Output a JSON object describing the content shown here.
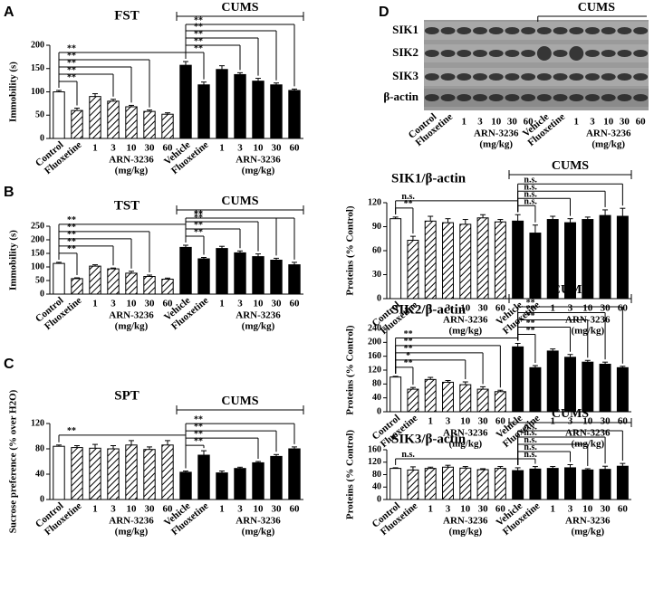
{
  "chart_data": [
    {
      "type": "bar",
      "panel_label": "A",
      "title": "FST",
      "ylabel": "Immobility (s)",
      "categories": [
        "Control",
        "Fluoxetine",
        "1",
        "3",
        "10",
        "30",
        "60",
        "Vehicle",
        "Fluoxetine",
        "1",
        "3",
        "10",
        "30",
        "60"
      ],
      "values": [
        100,
        60,
        90,
        80,
        68,
        58,
        52,
        157,
        115,
        148,
        137,
        123,
        115,
        103
      ],
      "errors": [
        3,
        5,
        6,
        4,
        3,
        3,
        3,
        8,
        6,
        8,
        4,
        6,
        4,
        3
      ],
      "bar_fills": [
        "white",
        "hatch",
        "hatch",
        "hatch",
        "hatch",
        "hatch",
        "hatch",
        "black",
        "black",
        "black",
        "black",
        "black",
        "black",
        "black"
      ],
      "ylim": [
        0,
        200
      ],
      "yticks": [
        0,
        50,
        100,
        150,
        200
      ],
      "group_label": [
        "ARN-3236",
        "(mg/kg)"
      ],
      "cums": "CUMS",
      "annotations": [
        {
          "text": "**",
          "from": 0,
          "to": 1
        },
        {
          "text": "**",
          "from": 0,
          "to": 3
        },
        {
          "text": "**",
          "from": 0,
          "to": 4
        },
        {
          "text": "**",
          "from": 0,
          "to": 5
        },
        {
          "text": "**",
          "from": 0,
          "to": 7
        },
        {
          "text": "**",
          "from": 7,
          "to": 8
        },
        {
          "text": "**",
          "from": 7,
          "to": 10
        },
        {
          "text": "**",
          "from": 7,
          "to": 11
        },
        {
          "text": "**",
          "from": 7,
          "to": 12
        },
        {
          "text": "**",
          "from": 7,
          "to": 13
        }
      ]
    },
    {
      "type": "bar",
      "panel_label": "B",
      "title": "TST",
      "ylabel": "Immobility (s)",
      "categories": [
        "Control",
        "Fluoxetine",
        "1",
        "3",
        "10",
        "30",
        "60",
        "Vehicle",
        "Fluoxetine",
        "1",
        "3",
        "10",
        "30",
        "60"
      ],
      "values": [
        113,
        57,
        103,
        93,
        77,
        65,
        55,
        172,
        130,
        168,
        152,
        138,
        125,
        108
      ],
      "errors": [
        4,
        3,
        5,
        3,
        7,
        5,
        4,
        8,
        5,
        8,
        7,
        10,
        7,
        9
      ],
      "bar_fills": [
        "white",
        "hatch",
        "hatch",
        "hatch",
        "hatch",
        "hatch",
        "hatch",
        "black",
        "black",
        "black",
        "black",
        "black",
        "black",
        "black"
      ],
      "ylim": [
        0,
        250
      ],
      "yticks": [
        0,
        50,
        100,
        150,
        200,
        250
      ],
      "group_label": [
        "ARN-3236",
        "(mg/kg)"
      ],
      "cums": "CUMS",
      "annotations": [
        {
          "text": "**",
          "from": 0,
          "to": 1
        },
        {
          "text": "**",
          "from": 0,
          "to": 3
        },
        {
          "text": "**",
          "from": 0,
          "to": 4
        },
        {
          "text": "**",
          "from": 0,
          "to": 5
        },
        {
          "text": "**",
          "from": 0,
          "to": 7
        },
        {
          "text": "**",
          "from": 7,
          "to": 8
        },
        {
          "text": "**",
          "from": 7,
          "to": 10
        },
        {
          "text": "**",
          "from": 7,
          "to": 11
        },
        {
          "text": "**",
          "from": 7,
          "to": 12
        },
        {
          "text": "**",
          "from": 7,
          "to": 13
        }
      ]
    },
    {
      "type": "bar",
      "panel_label": "C",
      "title": "SPT",
      "ylabel": "Sucrose preference (% over H2O)",
      "categories": [
        "Control",
        "Fluoxetine",
        "1",
        "3",
        "10",
        "30",
        "60",
        "Vehicle",
        "Fluoxetine",
        "1",
        "3",
        "10",
        "30",
        "60"
      ],
      "values": [
        84,
        82,
        81,
        80,
        86,
        79,
        86,
        43,
        70,
        42,
        49,
        58,
        68,
        80
      ],
      "errors": [
        2,
        3,
        6,
        5,
        7,
        4,
        7,
        2,
        7,
        3,
        2,
        2,
        3,
        3
      ],
      "bar_fills": [
        "white",
        "hatch",
        "hatch",
        "hatch",
        "hatch",
        "hatch",
        "hatch",
        "black",
        "black",
        "black",
        "black",
        "black",
        "black",
        "black"
      ],
      "ylim": [
        0,
        120
      ],
      "yticks": [
        0,
        40,
        80,
        120
      ],
      "group_label": [
        "ARN-3236",
        "(mg/kg)"
      ],
      "cums": "CUMS",
      "annotations": [
        {
          "text": "**",
          "from": 0,
          "to": 7
        },
        {
          "text": "**",
          "from": 7,
          "to": 8
        },
        {
          "text": "**",
          "from": 7,
          "to": 11
        },
        {
          "text": "**",
          "from": 7,
          "to": 12
        },
        {
          "text": "**",
          "from": 7,
          "to": 13
        }
      ]
    },
    {
      "type": "bar",
      "title": "SIK1/β-actin",
      "ylabel": "Proteins (% Control)",
      "categories": [
        "Control",
        "Fluoxetine",
        "1",
        "3",
        "10",
        "30",
        "60",
        "Vehicle",
        "Fluoxetine",
        "1",
        "3",
        "10",
        "30",
        "60"
      ],
      "values": [
        100,
        73,
        97,
        95,
        93,
        101,
        96,
        97,
        82,
        99,
        95,
        99,
        104,
        103
      ],
      "errors": [
        2,
        5,
        6,
        5,
        6,
        4,
        3,
        8,
        10,
        4,
        5,
        3,
        7,
        10
      ],
      "bar_fills": [
        "white",
        "hatch",
        "hatch",
        "hatch",
        "hatch",
        "hatch",
        "hatch",
        "black",
        "black",
        "black",
        "black",
        "black",
        "black",
        "black"
      ],
      "ylim": [
        0,
        120
      ],
      "yticks": [
        0,
        30,
        60,
        90,
        120
      ],
      "group_label": [
        "ARN-3236",
        "(mg/kg)"
      ],
      "cums": "CUMS",
      "annotations": [
        {
          "text": "**",
          "from": 0,
          "to": 1
        },
        {
          "text": "n.s.",
          "from": 0,
          "to": 7
        },
        {
          "text": "n.s.",
          "from": 7,
          "to": 8
        },
        {
          "text": "n.s.",
          "from": 7,
          "to": 10
        },
        {
          "text": "n.s.",
          "from": 7,
          "to": 12
        },
        {
          "text": "n.s.",
          "from": 7,
          "to": 13
        }
      ]
    },
    {
      "type": "bar",
      "title": "SIK2/β-actin",
      "ylabel": "Proteins (% Control)",
      "categories": [
        "Control",
        "Fluoxetine",
        "1",
        "3",
        "10",
        "30",
        "60",
        "Vehicle",
        "Fluoxetine",
        "1",
        "3",
        "10",
        "30",
        "60"
      ],
      "values": [
        100,
        65,
        93,
        85,
        78,
        65,
        58,
        187,
        127,
        175,
        157,
        143,
        137,
        127
      ],
      "errors": [
        2,
        5,
        6,
        5,
        8,
        7,
        4,
        10,
        6,
        6,
        8,
        5,
        6,
        4
      ],
      "bar_fills": [
        "white",
        "hatch",
        "hatch",
        "hatch",
        "hatch",
        "hatch",
        "hatch",
        "black",
        "black",
        "black",
        "black",
        "black",
        "black",
        "black"
      ],
      "ylim": [
        0,
        240
      ],
      "yticks": [
        0,
        40,
        80,
        120,
        160,
        200,
        240
      ],
      "group_label": [
        "ARN-3236",
        "(mg/kg)"
      ],
      "cums": "CUMS",
      "annotations": [
        {
          "text": "**",
          "from": 0,
          "to": 1
        },
        {
          "text": "*",
          "from": 0,
          "to": 4
        },
        {
          "text": "**",
          "from": 0,
          "to": 5
        },
        {
          "text": "**",
          "from": 0,
          "to": 6
        },
        {
          "text": "**",
          "from": 0,
          "to": 7
        },
        {
          "text": "**",
          "from": 7,
          "to": 8
        },
        {
          "text": "**",
          "from": 7,
          "to": 10
        },
        {
          "text": "**",
          "from": 7,
          "to": 11
        },
        {
          "text": "**",
          "from": 7,
          "to": 12
        },
        {
          "text": "**",
          "from": 7,
          "to": 13
        }
      ]
    },
    {
      "type": "bar",
      "title": "SIK3/β-actin",
      "ylabel": "Proteins (% Control)",
      "categories": [
        "Control",
        "Fluoxetine",
        "1",
        "3",
        "10",
        "30",
        "60",
        "Vehicle",
        "Fluoxetine",
        "1",
        "3",
        "10",
        "30",
        "60"
      ],
      "values": [
        100,
        95,
        100,
        104,
        101,
        96,
        100,
        93,
        98,
        100,
        102,
        95,
        97,
        107
      ],
      "errors": [
        2,
        10,
        4,
        6,
        5,
        3,
        6,
        9,
        8,
        6,
        10,
        4,
        10,
        9
      ],
      "bar_fills": [
        "white",
        "hatch",
        "hatch",
        "hatch",
        "hatch",
        "hatch",
        "hatch",
        "black",
        "black",
        "black",
        "black",
        "black",
        "black",
        "black"
      ],
      "ylim": [
        0,
        160
      ],
      "yticks": [
        0,
        40,
        80,
        120,
        160
      ],
      "group_label": [
        "ARN-3236",
        "(mg/kg)"
      ],
      "cums": "CUMS",
      "annotations": [
        {
          "text": "n.s.",
          "from": 0,
          "to": 7
        },
        {
          "text": "n.s.",
          "from": 7,
          "to": 8
        },
        {
          "text": "n.s.",
          "from": 7,
          "to": 10
        },
        {
          "text": "n.s.",
          "from": 7,
          "to": 11
        },
        {
          "text": "n.s.",
          "from": 7,
          "to": 12
        },
        {
          "text": "n.s.",
          "from": 7,
          "to": 13
        }
      ]
    }
  ],
  "blot": {
    "panel_label": "D",
    "cums": "CUMS",
    "rows": [
      "SIK1",
      "SIK2",
      "SIK3",
      "β-actin"
    ],
    "categories": [
      "Control",
      "Fluoxetine",
      "1",
      "3",
      "10",
      "30",
      "60",
      "Vehicle",
      "Fluoxetine",
      "1",
      "3",
      "10",
      "30",
      "60"
    ],
    "group_label": [
      "ARN-3236",
      "(mg/kg)"
    ]
  }
}
